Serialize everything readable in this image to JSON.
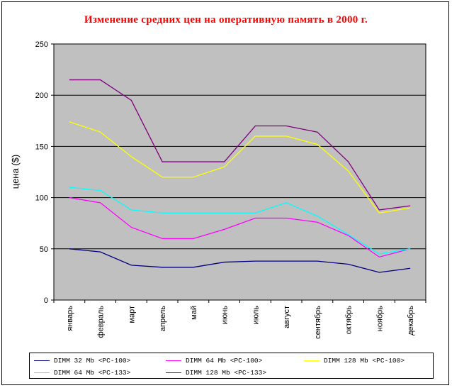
{
  "chart_data": {
    "type": "line",
    "title": "Изменение средних цен на оперативную память в 2000 г.",
    "xlabel": "",
    "ylabel": "цена ($)",
    "ylim": [
      0,
      250
    ],
    "yticks": [
      0,
      50,
      100,
      150,
      200,
      250
    ],
    "grid": "horizontal",
    "legend_position": "bottom",
    "categories": [
      "январь",
      "февраль",
      "март",
      "апрель",
      "май",
      "июнь",
      "июль",
      "август",
      "сентябрь",
      "октябрь",
      "ноябрь",
      "декабрь"
    ],
    "series": [
      {
        "name": "DIMM 32 Mb <PC-100>",
        "color": "#000080",
        "values": [
          50,
          47,
          34,
          32,
          32,
          37,
          38,
          38,
          38,
          35,
          27,
          31
        ]
      },
      {
        "name": "DIMM 64 Mb <PC-100>",
        "color": "#ff00ff",
        "values": [
          100,
          95,
          71,
          60,
          60,
          69,
          80,
          80,
          76,
          63,
          42,
          50
        ]
      },
      {
        "name": "DIMM 128 Mb <PC-100>",
        "color": "#ffff00",
        "values": [
          174,
          164,
          140,
          120,
          120,
          130,
          160,
          160,
          152,
          126,
          85,
          90
        ]
      },
      {
        "name": "DIMM 64 Mb <PC-133>",
        "color": "#00ffff",
        "values": [
          110,
          107,
          88,
          85,
          85,
          85,
          85,
          95,
          82,
          64,
          45,
          50
        ]
      },
      {
        "name": "DIMM 128 Mb <PC-133>",
        "color": "#800080",
        "values": [
          215,
          215,
          195,
          135,
          135,
          135,
          170,
          170,
          164,
          135,
          88,
          92
        ]
      }
    ]
  }
}
